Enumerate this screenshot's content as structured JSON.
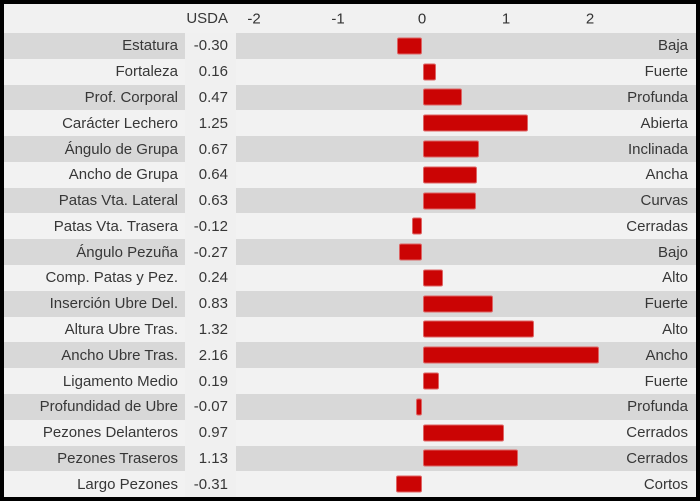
{
  "header": {
    "series_label": "USDA",
    "axis_ticks": [
      "-2",
      "-1",
      "0",
      "1",
      "2"
    ]
  },
  "colors": {
    "bar": "#cb0404",
    "bar_border": "#dd6464",
    "row_gray": "#d8d8d8",
    "row_light": "#f2f2f2",
    "value_strip": "#f0f0f0",
    "frame": "#000000",
    "text": "#373737"
  },
  "chart_data": {
    "type": "bar",
    "orientation": "horizontal",
    "title": "",
    "xlabel": "",
    "ylabel": "",
    "series_name": "USDA",
    "xticks": [
      -2,
      -1,
      0,
      1,
      2
    ],
    "xlim": [
      -2.24,
      2.1
    ],
    "grid": false,
    "legend_position": "none",
    "bar_color": "#cb0404",
    "categories": [
      "Estatura",
      "Fortaleza",
      "Prof. Corporal",
      "Carácter Lechero",
      "Ángulo de Grupa",
      "Ancho de Grupa",
      "Patas Vta. Lateral",
      "Patas Vta. Trasera",
      "Ángulo Pezuña",
      "Comp. Patas y Pez.",
      "Inserción Ubre Del.",
      "Altura Ubre Tras.",
      "Ancho Ubre Tras.",
      "Ligamento Medio",
      "Profundidad de Ubre",
      "Pezones Delanteros",
      "Pezones Traseros",
      "Largo Pezones"
    ],
    "values": [
      -0.3,
      0.16,
      0.47,
      1.25,
      0.67,
      0.64,
      0.63,
      -0.12,
      -0.27,
      0.24,
      0.83,
      1.32,
      2.16,
      0.19,
      -0.07,
      0.97,
      1.13,
      -0.31
    ],
    "value_labels": [
      "-0.30",
      "0.16",
      "0.47",
      "1.25",
      "0.67",
      "0.64",
      "0.63",
      "-0.12",
      "-0.27",
      "0.24",
      "0.83",
      "1.32",
      "2.16",
      "0.19",
      "-0.07",
      "0.97",
      "1.13",
      "-0.31"
    ],
    "right_labels": [
      "Baja",
      "Fuerte",
      "Profunda",
      "Abierta",
      "Inclinada",
      "Ancha",
      "Curvas",
      "Cerradas",
      "Bajo",
      "Alto",
      "Fuerte",
      "Alto",
      "Ancho",
      "Fuerte",
      "Profunda",
      "Cerrados",
      "Cerrados",
      "Cortos"
    ]
  }
}
